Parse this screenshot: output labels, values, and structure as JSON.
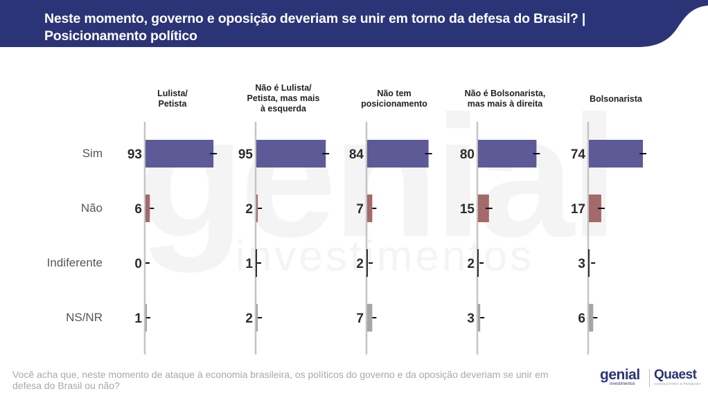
{
  "header": {
    "title_line1": "Neste momento, governo e oposição deveriam se unir em torno da defesa do Brasil? |",
    "title_line2": "Posicionamento político",
    "background_color": "#2b3476"
  },
  "watermark": {
    "main": "genial",
    "sub": "investimentos"
  },
  "chart_data": {
    "type": "bar",
    "orientation": "horizontal",
    "title": "Neste momento, governo e oposição deveriam se unir em torno da defesa do Brasil? | Posicionamento político",
    "xlabel": "",
    "ylabel": "",
    "unit": "%",
    "xlim": [
      0,
      100
    ],
    "grid": false,
    "legend": "none",
    "categories": [
      "Sim",
      "Não",
      "Indiferente",
      "NS/NR"
    ],
    "category_colors": [
      "#5d5a97",
      "#a46a6a",
      "#2e2e2e",
      "#a6a6a6"
    ],
    "panels": [
      {
        "title_lines": [
          "Lulista/",
          "Petista"
        ],
        "values": [
          93,
          6,
          0,
          1
        ]
      },
      {
        "title_lines": [
          "Não é Lulista/",
          "Petista, mas mais",
          "à esquerda"
        ],
        "values": [
          95,
          2,
          1,
          2
        ]
      },
      {
        "title_lines": [
          "Não tem",
          "posicionamento"
        ],
        "values": [
          84,
          7,
          2,
          7
        ]
      },
      {
        "title_lines": [
          "Não é Bolsonarista,",
          "mas mais à direita"
        ],
        "values": [
          80,
          15,
          2,
          3
        ]
      },
      {
        "title_lines": [
          "Bolsonarista"
        ],
        "values": [
          74,
          17,
          3,
          6
        ]
      }
    ],
    "error_bars": true
  },
  "footer": {
    "question": "Você acha que, neste momento de ataque à economia brasileira, os políticos do governo e da oposição deveriam se unir em defesa do Brasil ou não?"
  },
  "logos": {
    "genial": "genial",
    "genial_sub": "investimentos",
    "quaest": "Quaest",
    "quaest_sub": "CONSULTORIA & PESQUISA"
  }
}
